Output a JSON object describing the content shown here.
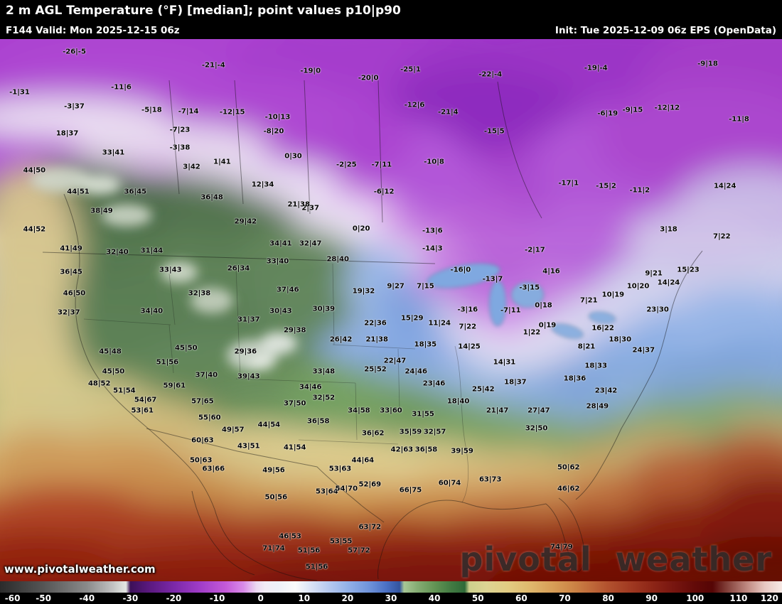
{
  "header": {
    "title": "2 m AGL Temperature (°F) [median]; point values p10|p90",
    "valid": "F144 Valid: Mon 2025-12-15 06z",
    "init": "Init: Tue 2025-12-09 06z EPS (OpenData)"
  },
  "watermark": "www.pivotalweather.com",
  "logo": "pivotal weather",
  "colorbar": {
    "unit": "°F",
    "min": -60,
    "max": 120,
    "ticks": [
      -60,
      -50,
      -40,
      -30,
      -20,
      -10,
      0,
      10,
      20,
      30,
      40,
      50,
      60,
      70,
      80,
      90,
      100,
      110,
      120
    ],
    "stops": [
      {
        "t": -60,
        "c": "#2b2b2b"
      },
      {
        "t": -50,
        "c": "#555555"
      },
      {
        "t": -40,
        "c": "#8a8a8a"
      },
      {
        "t": -34,
        "c": "#c2c2c2"
      },
      {
        "t": -31,
        "c": "#e5e8e4"
      },
      {
        "t": -30,
        "c": "#3c1058"
      },
      {
        "t": -26,
        "c": "#58187c"
      },
      {
        "t": -20,
        "c": "#7b28a8"
      },
      {
        "t": -14,
        "c": "#a03cc8"
      },
      {
        "t": -8,
        "c": "#c45ad8"
      },
      {
        "t": -4,
        "c": "#d98ae8"
      },
      {
        "t": -1,
        "c": "#ecd8f2"
      },
      {
        "t": 1,
        "c": "#f2ecf6"
      },
      {
        "t": 4,
        "c": "#eef0f8"
      },
      {
        "t": 8,
        "c": "#fafafa"
      },
      {
        "t": 11,
        "c": "#dfe6f6"
      },
      {
        "t": 15,
        "c": "#bccdf0"
      },
      {
        "t": 20,
        "c": "#93b2e8"
      },
      {
        "t": 25,
        "c": "#6f93da"
      },
      {
        "t": 29,
        "c": "#4a70c4"
      },
      {
        "t": 32,
        "c": "#33549f"
      },
      {
        "t": 33,
        "c": "#a8c795"
      },
      {
        "t": 36,
        "c": "#86ad74"
      },
      {
        "t": 40,
        "c": "#639455"
      },
      {
        "t": 44,
        "c": "#417a42"
      },
      {
        "t": 47,
        "c": "#2f6a38"
      },
      {
        "t": 48,
        "c": "#cdd08d"
      },
      {
        "t": 52,
        "c": "#ddd494"
      },
      {
        "t": 57,
        "c": "#e2cc82"
      },
      {
        "t": 62,
        "c": "#e0b86d"
      },
      {
        "t": 67,
        "c": "#d89f58"
      },
      {
        "t": 72,
        "c": "#cc8446"
      },
      {
        "t": 76,
        "c": "#c06a3a"
      },
      {
        "t": 80,
        "c": "#b2512e"
      },
      {
        "t": 85,
        "c": "#a13a22"
      },
      {
        "t": 90,
        "c": "#8e2617"
      },
      {
        "t": 95,
        "c": "#781610"
      },
      {
        "t": 100,
        "c": "#620a08"
      },
      {
        "t": 104,
        "c": "#550505"
      },
      {
        "t": 107,
        "c": "#7e3a34"
      },
      {
        "t": 112,
        "c": "#c08a82"
      },
      {
        "t": 116,
        "c": "#e8c8c2"
      },
      {
        "t": 120,
        "c": "#f6e8e4"
      }
    ]
  },
  "map_points": [
    {
      "t": "-26|-5",
      "x": 9.5,
      "y": 2.4
    },
    {
      "t": "-21|-4",
      "x": 27.3,
      "y": 4.8
    },
    {
      "t": "-19|0",
      "x": 39.7,
      "y": 5.9
    },
    {
      "t": "-20|0",
      "x": 47.1,
      "y": 7.2
    },
    {
      "t": "-25|1",
      "x": 52.5,
      "y": 5.6
    },
    {
      "t": "-22|-4",
      "x": 62.7,
      "y": 6.6
    },
    {
      "t": "-19|-4",
      "x": 76.2,
      "y": 5.4
    },
    {
      "t": "-9|18",
      "x": 90.5,
      "y": 4.6
    },
    {
      "t": "-9|15",
      "x": 80.9,
      "y": 13.1
    },
    {
      "t": "-12|12",
      "x": 85.3,
      "y": 12.7
    },
    {
      "t": "-11|8",
      "x": 94.5,
      "y": 14.8
    },
    {
      "t": "-6|19",
      "x": 77.7,
      "y": 13.8
    },
    {
      "t": "-1|31",
      "x": 2.5,
      "y": 9.8
    },
    {
      "t": "-11|6",
      "x": 15.5,
      "y": 8.9
    },
    {
      "t": "-3|37",
      "x": 9.5,
      "y": 12.5
    },
    {
      "t": "-5|18",
      "x": 19.4,
      "y": 13.1
    },
    {
      "t": "-7|14",
      "x": 24.1,
      "y": 13.4
    },
    {
      "t": "-12|15",
      "x": 29.7,
      "y": 13.5
    },
    {
      "t": "-10|13",
      "x": 35.5,
      "y": 14.4
    },
    {
      "t": "18|37",
      "x": 8.6,
      "y": 17.4
    },
    {
      "t": "-7|23",
      "x": 23.0,
      "y": 16.8
    },
    {
      "t": "-8|20",
      "x": 35.0,
      "y": 17.0
    },
    {
      "t": "33|41",
      "x": 14.5,
      "y": 21.0
    },
    {
      "t": "-3|38",
      "x": 23.0,
      "y": 20.1
    },
    {
      "t": "0|30",
      "x": 37.5,
      "y": 21.6
    },
    {
      "t": "3|42",
      "x": 24.5,
      "y": 23.6
    },
    {
      "t": "1|41",
      "x": 28.4,
      "y": 22.7
    },
    {
      "t": "-2|25",
      "x": 44.3,
      "y": 23.2
    },
    {
      "t": "-7|11",
      "x": 48.8,
      "y": 23.2
    },
    {
      "t": "-10|8",
      "x": 55.5,
      "y": 22.7
    },
    {
      "t": "-15|5",
      "x": 63.2,
      "y": 17.0
    },
    {
      "t": "-12|6",
      "x": 53.0,
      "y": 12.2
    },
    {
      "t": "-21|4",
      "x": 57.3,
      "y": 13.5
    },
    {
      "t": "-17|1",
      "x": 72.7,
      "y": 26.6
    },
    {
      "t": "-15|2",
      "x": 77.5,
      "y": 27.1
    },
    {
      "t": "-11|2",
      "x": 81.8,
      "y": 27.9
    },
    {
      "t": "3|18",
      "x": 85.5,
      "y": 35.1
    },
    {
      "t": "7|22",
      "x": 92.3,
      "y": 36.4
    },
    {
      "t": "15|23",
      "x": 88.0,
      "y": 42.6
    },
    {
      "t": "9|21",
      "x": 83.6,
      "y": 43.3
    },
    {
      "t": "14|24",
      "x": 85.5,
      "y": 45.0
    },
    {
      "t": "10|20",
      "x": 81.6,
      "y": 45.6
    },
    {
      "t": "10|19",
      "x": 78.4,
      "y": 47.2
    },
    {
      "t": "23|30",
      "x": 84.1,
      "y": 49.9
    },
    {
      "t": "14|24",
      "x": 92.7,
      "y": 27.1
    },
    {
      "t": "-6|12",
      "x": 49.1,
      "y": 28.2
    },
    {
      "t": "2|37",
      "x": 39.7,
      "y": 31.2
    },
    {
      "t": "21|38",
      "x": 38.2,
      "y": 30.5
    },
    {
      "t": "0|20",
      "x": 46.2,
      "y": 35.0
    },
    {
      "t": "-13|6",
      "x": 55.3,
      "y": 35.4
    },
    {
      "t": "-14|3",
      "x": 55.3,
      "y": 38.7
    },
    {
      "t": "-16|0",
      "x": 58.9,
      "y": 42.6
    },
    {
      "t": "-13|7",
      "x": 63.0,
      "y": 44.3
    },
    {
      "t": "-2|17",
      "x": 68.4,
      "y": 38.9
    },
    {
      "t": "4|16",
      "x": 70.5,
      "y": 42.9
    },
    {
      "t": "-7|11",
      "x": 65.3,
      "y": 50.1
    },
    {
      "t": "-3|15",
      "x": 67.7,
      "y": 45.9
    },
    {
      "t": "0|18",
      "x": 69.5,
      "y": 49.1
    },
    {
      "t": "0|19",
      "x": 70.0,
      "y": 52.8
    },
    {
      "t": "1|22",
      "x": 68.0,
      "y": 54.1
    },
    {
      "t": "-3|16",
      "x": 59.8,
      "y": 49.9
    },
    {
      "t": "7|15",
      "x": 54.4,
      "y": 45.6
    },
    {
      "t": "9|27",
      "x": 50.6,
      "y": 45.6
    },
    {
      "t": "19|32",
      "x": 46.5,
      "y": 46.5
    },
    {
      "t": "15|29",
      "x": 52.7,
      "y": 51.5
    },
    {
      "t": "11|24",
      "x": 56.2,
      "y": 52.4
    },
    {
      "t": "7|22",
      "x": 59.8,
      "y": 53.1
    },
    {
      "t": "28|40",
      "x": 43.2,
      "y": 40.6
    },
    {
      "t": "22|36",
      "x": 48.0,
      "y": 52.4
    },
    {
      "t": "21|38",
      "x": 48.2,
      "y": 55.4
    },
    {
      "t": "26|42",
      "x": 43.6,
      "y": 55.4
    },
    {
      "t": "22|47",
      "x": 50.5,
      "y": 59.4
    },
    {
      "t": "24|46",
      "x": 53.2,
      "y": 61.3
    },
    {
      "t": "25|52",
      "x": 48.0,
      "y": 60.9
    },
    {
      "t": "18|35",
      "x": 54.4,
      "y": 56.4
    },
    {
      "t": "14|25",
      "x": 60.0,
      "y": 56.8
    },
    {
      "t": "23|46",
      "x": 55.5,
      "y": 63.6
    },
    {
      "t": "25|42",
      "x": 61.8,
      "y": 64.6
    },
    {
      "t": "14|31",
      "x": 64.5,
      "y": 59.6
    },
    {
      "t": "18|37",
      "x": 65.9,
      "y": 63.3
    },
    {
      "t": "18|40",
      "x": 58.6,
      "y": 66.8
    },
    {
      "t": "21|47",
      "x": 63.6,
      "y": 68.5
    },
    {
      "t": "27|47",
      "x": 68.9,
      "y": 68.5
    },
    {
      "t": "32|50",
      "x": 68.6,
      "y": 71.8
    },
    {
      "t": "18|36",
      "x": 73.5,
      "y": 62.6
    },
    {
      "t": "18|33",
      "x": 76.2,
      "y": 60.3
    },
    {
      "t": "23|42",
      "x": 77.5,
      "y": 64.9
    },
    {
      "t": "28|49",
      "x": 76.4,
      "y": 67.8
    },
    {
      "t": "18|30",
      "x": 79.3,
      "y": 55.4
    },
    {
      "t": "8|21",
      "x": 75.0,
      "y": 56.8
    },
    {
      "t": "7|21",
      "x": 75.3,
      "y": 48.2
    },
    {
      "t": "16|22",
      "x": 77.1,
      "y": 53.3
    },
    {
      "t": "24|37",
      "x": 82.3,
      "y": 57.4
    },
    {
      "t": "34|58",
      "x": 45.9,
      "y": 68.5
    },
    {
      "t": "33|60",
      "x": 50.0,
      "y": 68.5
    },
    {
      "t": "31|55",
      "x": 54.1,
      "y": 69.2
    },
    {
      "t": "36|62",
      "x": 47.7,
      "y": 72.7
    },
    {
      "t": "35|59",
      "x": 52.5,
      "y": 72.5
    },
    {
      "t": "32|57",
      "x": 55.6,
      "y": 72.5
    },
    {
      "t": "42|63",
      "x": 51.4,
      "y": 75.8
    },
    {
      "t": "36|58",
      "x": 54.5,
      "y": 75.8
    },
    {
      "t": "39|59",
      "x": 59.1,
      "y": 76.0
    },
    {
      "t": "44|64",
      "x": 46.4,
      "y": 77.7
    },
    {
      "t": "53|63",
      "x": 43.5,
      "y": 79.3
    },
    {
      "t": "36|58",
      "x": 40.7,
      "y": 70.5
    },
    {
      "t": "41|54",
      "x": 37.7,
      "y": 75.4
    },
    {
      "t": "43|51",
      "x": 31.8,
      "y": 75.1
    },
    {
      "t": "49|56",
      "x": 35.0,
      "y": 79.6
    },
    {
      "t": "50|56",
      "x": 35.3,
      "y": 84.5
    },
    {
      "t": "53|64",
      "x": 41.8,
      "y": 83.5
    },
    {
      "t": "54|70",
      "x": 44.3,
      "y": 83.0
    },
    {
      "t": "52|69",
      "x": 47.3,
      "y": 82.2
    },
    {
      "t": "66|75",
      "x": 52.5,
      "y": 83.2
    },
    {
      "t": "60|74",
      "x": 57.5,
      "y": 81.9
    },
    {
      "t": "63|73",
      "x": 62.7,
      "y": 81.3
    },
    {
      "t": "63|72",
      "x": 47.3,
      "y": 90.0
    },
    {
      "t": "46|53",
      "x": 37.1,
      "y": 91.7
    },
    {
      "t": "51|56",
      "x": 39.5,
      "y": 94.4
    },
    {
      "t": "53|55",
      "x": 43.6,
      "y": 92.7
    },
    {
      "t": "57|72",
      "x": 45.9,
      "y": 94.4
    },
    {
      "t": "51|56",
      "x": 40.5,
      "y": 97.4
    },
    {
      "t": "71|74",
      "x": 35.0,
      "y": 94.0
    },
    {
      "t": "50|62",
      "x": 72.7,
      "y": 79.0
    },
    {
      "t": "46|62",
      "x": 72.7,
      "y": 83.0
    },
    {
      "t": "74|79",
      "x": 71.8,
      "y": 93.7
    },
    {
      "t": "44|50",
      "x": 4.4,
      "y": 24.2
    },
    {
      "t": "44|51",
      "x": 10.0,
      "y": 28.2
    },
    {
      "t": "36|45",
      "x": 17.3,
      "y": 28.2
    },
    {
      "t": "36|48",
      "x": 27.1,
      "y": 29.2
    },
    {
      "t": "12|34",
      "x": 33.6,
      "y": 26.9
    },
    {
      "t": "38|49",
      "x": 13.0,
      "y": 31.7
    },
    {
      "t": "29|42",
      "x": 31.4,
      "y": 33.7
    },
    {
      "t": "44|52",
      "x": 4.4,
      "y": 35.1
    },
    {
      "t": "41|49",
      "x": 9.1,
      "y": 38.7
    },
    {
      "t": "32|40",
      "x": 15.0,
      "y": 39.3
    },
    {
      "t": "31|44",
      "x": 19.4,
      "y": 39.1
    },
    {
      "t": "33|43",
      "x": 21.8,
      "y": 42.6
    },
    {
      "t": "36|45",
      "x": 9.1,
      "y": 43.0
    },
    {
      "t": "32|38",
      "x": 25.5,
      "y": 46.9
    },
    {
      "t": "26|34",
      "x": 30.5,
      "y": 42.3
    },
    {
      "t": "33|40",
      "x": 35.5,
      "y": 41.0
    },
    {
      "t": "34|41",
      "x": 35.9,
      "y": 37.7
    },
    {
      "t": "32|47",
      "x": 39.7,
      "y": 37.7
    },
    {
      "t": "37|46",
      "x": 36.8,
      "y": 46.3
    },
    {
      "t": "30|43",
      "x": 35.9,
      "y": 50.2
    },
    {
      "t": "31|37",
      "x": 31.8,
      "y": 51.8
    },
    {
      "t": "29|38",
      "x": 37.7,
      "y": 53.7
    },
    {
      "t": "30|39",
      "x": 41.4,
      "y": 49.8
    },
    {
      "t": "46|50",
      "x": 9.5,
      "y": 46.9
    },
    {
      "t": "34|40",
      "x": 19.4,
      "y": 50.2
    },
    {
      "t": "32|37",
      "x": 8.8,
      "y": 50.5
    },
    {
      "t": "45|48",
      "x": 14.1,
      "y": 57.7
    },
    {
      "t": "45|50",
      "x": 23.8,
      "y": 57.0
    },
    {
      "t": "51|56",
      "x": 21.4,
      "y": 59.6
    },
    {
      "t": "45|50",
      "x": 14.5,
      "y": 61.3
    },
    {
      "t": "48|52",
      "x": 12.7,
      "y": 63.6
    },
    {
      "t": "51|54",
      "x": 15.9,
      "y": 64.9
    },
    {
      "t": "54|67",
      "x": 18.6,
      "y": 66.6
    },
    {
      "t": "59|61",
      "x": 22.3,
      "y": 64.0
    },
    {
      "t": "53|61",
      "x": 18.2,
      "y": 68.5
    },
    {
      "t": "57|65",
      "x": 25.9,
      "y": 66.8
    },
    {
      "t": "55|60",
      "x": 26.8,
      "y": 69.9
    },
    {
      "t": "37|40",
      "x": 26.4,
      "y": 62.0
    },
    {
      "t": "29|36",
      "x": 31.4,
      "y": 57.7
    },
    {
      "t": "39|43",
      "x": 31.8,
      "y": 62.3
    },
    {
      "t": "33|48",
      "x": 41.4,
      "y": 61.3
    },
    {
      "t": "34|46",
      "x": 39.7,
      "y": 64.2
    },
    {
      "t": "32|52",
      "x": 41.4,
      "y": 66.2
    },
    {
      "t": "37|50",
      "x": 37.7,
      "y": 67.2
    },
    {
      "t": "44|54",
      "x": 34.4,
      "y": 71.2
    },
    {
      "t": "49|57",
      "x": 29.8,
      "y": 72.1
    },
    {
      "t": "60|63",
      "x": 25.9,
      "y": 74.0
    },
    {
      "t": "50|63",
      "x": 25.7,
      "y": 77.7
    },
    {
      "t": "63|66",
      "x": 27.3,
      "y": 79.3
    }
  ]
}
